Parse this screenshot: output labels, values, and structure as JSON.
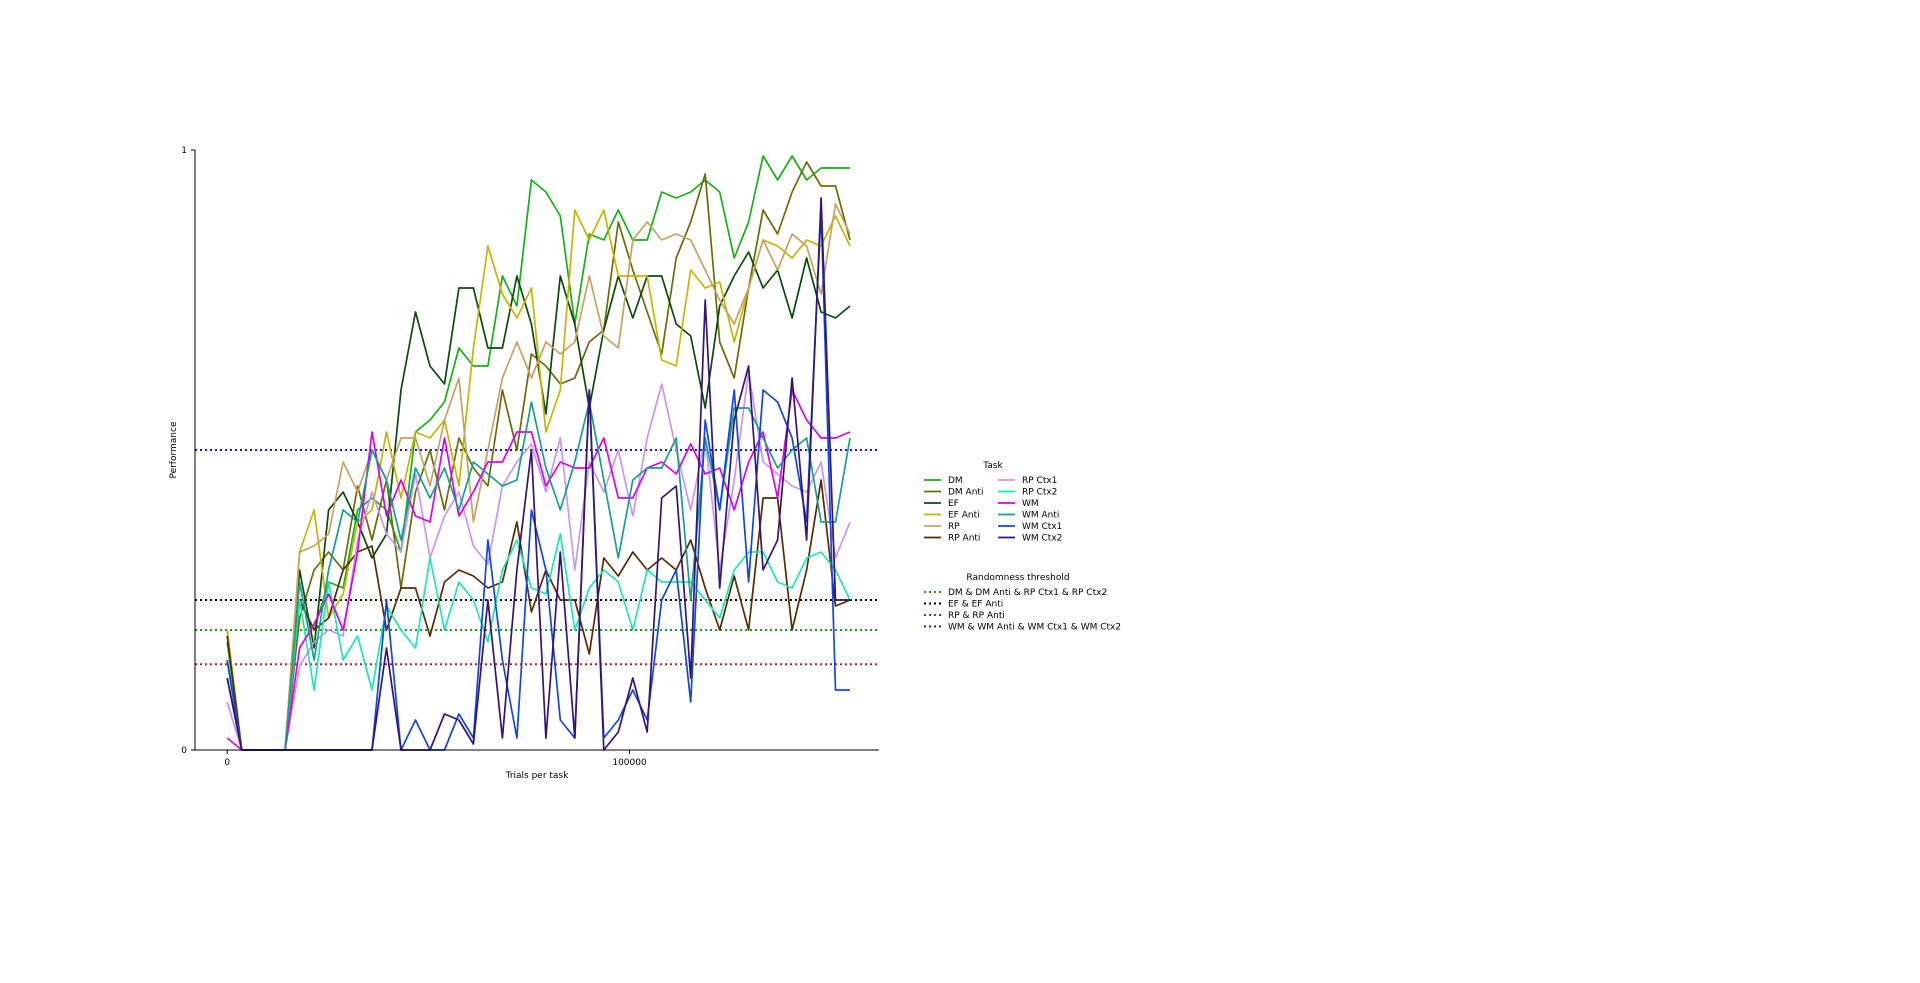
{
  "chart_data": {
    "type": "line",
    "xlabel": "Trials per task",
    "ylabel": "Performance",
    "xlim": [
      -8000,
      162000
    ],
    "ylim": [
      0,
      1
    ],
    "xticks": [
      {
        "value": 0,
        "label": "0"
      },
      {
        "value": 100000,
        "label": "100000"
      }
    ],
    "yticks": [
      {
        "value": 0,
        "label": "0"
      },
      {
        "value": 1,
        "label": "1"
      }
    ],
    "grid": false,
    "legend_placement": "right",
    "x": [
      0,
      3600,
      7200,
      10800,
      14400,
      18000,
      21600,
      25200,
      28800,
      32400,
      36000,
      39600,
      43200,
      46800,
      50400,
      54000,
      57600,
      61200,
      64800,
      68400,
      72000,
      75600,
      79200,
      82800,
      86400,
      90000,
      93600,
      97200,
      100800,
      104400,
      108000,
      111600,
      115200,
      118800,
      122400,
      126000,
      129600,
      133200,
      136800,
      140400,
      144000,
      147600,
      151200,
      154800
    ],
    "series_legend_title": "Task",
    "series": [
      {
        "name": "DM",
        "color": "#14b014",
        "values": [
          0.18,
          0,
          0,
          0,
          0,
          0.25,
          0.2,
          0.28,
          0.27,
          0.4,
          0.42,
          0.4,
          0.33,
          0.53,
          0.55,
          0.58,
          0.67,
          0.64,
          0.64,
          0.79,
          0.74,
          0.95,
          0.93,
          0.89,
          0.71,
          0.86,
          0.85,
          0.9,
          0.85,
          0.85,
          0.93,
          0.92,
          0.93,
          0.95,
          0.93,
          0.82,
          0.88,
          0.99,
          0.95,
          0.99,
          0.95,
          0.97,
          0.97,
          0.97
        ]
      },
      {
        "name": "DM Anti",
        "color": "#6b6b0a",
        "values": [
          0.2,
          0,
          0,
          0,
          0,
          0.22,
          0.3,
          0.33,
          0.3,
          0.44,
          0.35,
          0.45,
          0.27,
          0.43,
          0.5,
          0.4,
          0.52,
          0.47,
          0.44,
          0.6,
          0.5,
          0.66,
          0.64,
          0.61,
          0.62,
          0.68,
          0.7,
          0.88,
          0.8,
          0.73,
          0.66,
          0.82,
          0.88,
          0.96,
          0.68,
          0.62,
          0.77,
          0.9,
          0.86,
          0.93,
          0.98,
          0.94,
          0.94,
          0.85
        ]
      },
      {
        "name": "EF",
        "color": "#0a4a0a",
        "values": [
          0.12,
          0,
          0,
          0,
          0,
          0.3,
          0.17,
          0.4,
          0.43,
          0.38,
          0.32,
          0.36,
          0.6,
          0.73,
          0.64,
          0.61,
          0.77,
          0.77,
          0.67,
          0.67,
          0.79,
          0.71,
          0.56,
          0.79,
          0.71,
          0.57,
          0.7,
          0.79,
          0.72,
          0.79,
          0.79,
          0.71,
          0.69,
          0.57,
          0.74,
          0.79,
          0.83,
          0.77,
          0.8,
          0.72,
          0.82,
          0.73,
          0.72,
          0.74
        ]
      },
      {
        "name": "EF Anti",
        "color": "#c8b400",
        "values": [
          0.2,
          0,
          0,
          0,
          0,
          0.33,
          0.4,
          0.22,
          0.26,
          0.38,
          0.4,
          0.53,
          0.42,
          0.53,
          0.52,
          0.55,
          0.44,
          0.67,
          0.84,
          0.76,
          0.72,
          0.77,
          0.53,
          0.6,
          0.9,
          0.85,
          0.9,
          0.79,
          0.79,
          0.79,
          0.65,
          0.64,
          0.8,
          0.77,
          0.78,
          0.68,
          0.77,
          0.85,
          0.84,
          0.82,
          0.85,
          0.84,
          0.89,
          0.84
        ]
      },
      {
        "name": "RP",
        "color": "#c8a060",
        "values": [
          0.08,
          0,
          0,
          0,
          0,
          0.33,
          0.34,
          0.36,
          0.48,
          0.43,
          0.5,
          0.45,
          0.52,
          0.52,
          0.44,
          0.55,
          0.62,
          0.38,
          0.5,
          0.62,
          0.68,
          0.62,
          0.68,
          0.66,
          0.68,
          0.79,
          0.69,
          0.67,
          0.85,
          0.88,
          0.85,
          0.86,
          0.85,
          0.8,
          0.75,
          0.71,
          0.77,
          0.85,
          0.8,
          0.86,
          0.84,
          0.76,
          0.91,
          0.86
        ]
      },
      {
        "name": "RP Anti",
        "color": "#5a2a00",
        "values": [
          0.19,
          0,
          0,
          0,
          0,
          0.25,
          0.2,
          0.22,
          0.3,
          0.33,
          0.34,
          0.2,
          0.27,
          0.27,
          0.19,
          0.28,
          0.3,
          0.29,
          0.27,
          0.28,
          0.38,
          0.23,
          0.3,
          0.25,
          0.25,
          0.16,
          0.32,
          0.29,
          0.33,
          0.3,
          0.32,
          0.3,
          0.35,
          0.27,
          0.2,
          0.29,
          0.2,
          0.42,
          0.42,
          0.2,
          0.3,
          0.45,
          0.24,
          0.25
        ]
      },
      {
        "name": "RP Ctx1",
        "color": "#c896f0",
        "values": [
          0.08,
          0,
          0,
          0,
          0,
          0.14,
          0.18,
          0.2,
          0.19,
          0.35,
          0.43,
          0.36,
          0.33,
          0.46,
          0.32,
          0.39,
          0.43,
          0.34,
          0.31,
          0.44,
          0.48,
          0.51,
          0.43,
          0.52,
          0.3,
          0.48,
          0.43,
          0.5,
          0.39,
          0.52,
          0.61,
          0.5,
          0.4,
          0.52,
          0.3,
          0.45,
          0.63,
          0.48,
          0.46,
          0.44,
          0.43,
          0.48,
          0.32,
          0.38
        ]
      },
      {
        "name": "RP Ctx2",
        "color": "#1ee6b4",
        "values": [
          0.15,
          0,
          0,
          0,
          0,
          0.25,
          0.1,
          0.28,
          0.15,
          0.19,
          0.1,
          0.24,
          0.2,
          0.17,
          0.32,
          0.2,
          0.28,
          0.25,
          0.18,
          0.3,
          0.35,
          0.27,
          0.26,
          0.36,
          0.2,
          0.27,
          0.3,
          0.28,
          0.2,
          0.3,
          0.28,
          0.28,
          0.28,
          0.25,
          0.22,
          0.3,
          0.33,
          0.33,
          0.28,
          0.27,
          0.32,
          0.33,
          0.3,
          0.25
        ]
      },
      {
        "name": "WM",
        "color": "#dc00f0",
        "values": [
          0.02,
          0,
          0,
          0,
          0,
          0.17,
          0.21,
          0.26,
          0.2,
          0.33,
          0.53,
          0.39,
          0.45,
          0.39,
          0.38,
          0.52,
          0.39,
          0.43,
          0.48,
          0.48,
          0.53,
          0.53,
          0.44,
          0.48,
          0.47,
          0.47,
          0.52,
          0.42,
          0.42,
          0.47,
          0.48,
          0.46,
          0.51,
          0.46,
          0.47,
          0.4,
          0.48,
          0.53,
          0.42,
          0.6,
          0.55,
          0.52,
          0.52,
          0.53
        ]
      },
      {
        "name": "WM Anti",
        "color": "#14a08c",
        "values": [
          0.15,
          0,
          0,
          0,
          0,
          0.28,
          0.15,
          0.3,
          0.4,
          0.38,
          0.5,
          0.45,
          0.35,
          0.47,
          0.42,
          0.47,
          0.4,
          0.48,
          0.46,
          0.44,
          0.45,
          0.58,
          0.47,
          0.4,
          0.48,
          0.58,
          0.45,
          0.32,
          0.45,
          0.47,
          0.47,
          0.52,
          0.25,
          0.52,
          0.4,
          0.57,
          0.57,
          0.52,
          0.47,
          0.5,
          0.52,
          0.38,
          0.38,
          0.52
        ]
      },
      {
        "name": "WM Ctx1",
        "color": "#1446dc",
        "values": [
          0.15,
          0,
          0,
          0,
          0,
          0,
          0,
          0,
          0,
          0,
          0,
          0.25,
          0,
          0.05,
          0,
          0,
          0.06,
          0.02,
          0.35,
          0.15,
          0.02,
          0.4,
          0.3,
          0.05,
          0.02,
          0.6,
          0.02,
          0.05,
          0.1,
          0.05,
          0.25,
          0.3,
          0.08,
          0.55,
          0.4,
          0.6,
          0.28,
          0.6,
          0.58,
          0.52,
          0.38,
          0.9,
          0.1,
          0.1
        ]
      },
      {
        "name": "WM Ctx2",
        "color": "#32147a",
        "values": [
          0.12,
          0,
          0,
          0,
          0,
          0,
          0,
          0,
          0,
          0,
          0,
          0.17,
          0,
          0,
          0,
          0.06,
          0.05,
          0.01,
          0.25,
          0.02,
          0.3,
          0.5,
          0.02,
          0.33,
          0.02,
          0.6,
          0,
          0.03,
          0.12,
          0.03,
          0.42,
          0.44,
          0.12,
          0.75,
          0.27,
          0.55,
          0.64,
          0.3,
          0.35,
          0.62,
          0.35,
          0.92,
          0.25,
          0.25
        ]
      }
    ],
    "threshold_legend_title": "Randomness threshold",
    "thresholds": [
      {
        "name": "DM & DM Anti & RP Ctx1 & RP Ctx2",
        "color": "#1a9a1a",
        "value": 0.2
      },
      {
        "name": "EF & EF Anti",
        "color": "#000000",
        "value": 0.25
      },
      {
        "name": "RP & RP Anti",
        "color": "#b41e1e",
        "value": 0.143
      },
      {
        "name": "WM & WM Anti & WM Ctx1 & WM Ctx2",
        "color": "#1414d2",
        "value": 0.5
      }
    ]
  }
}
